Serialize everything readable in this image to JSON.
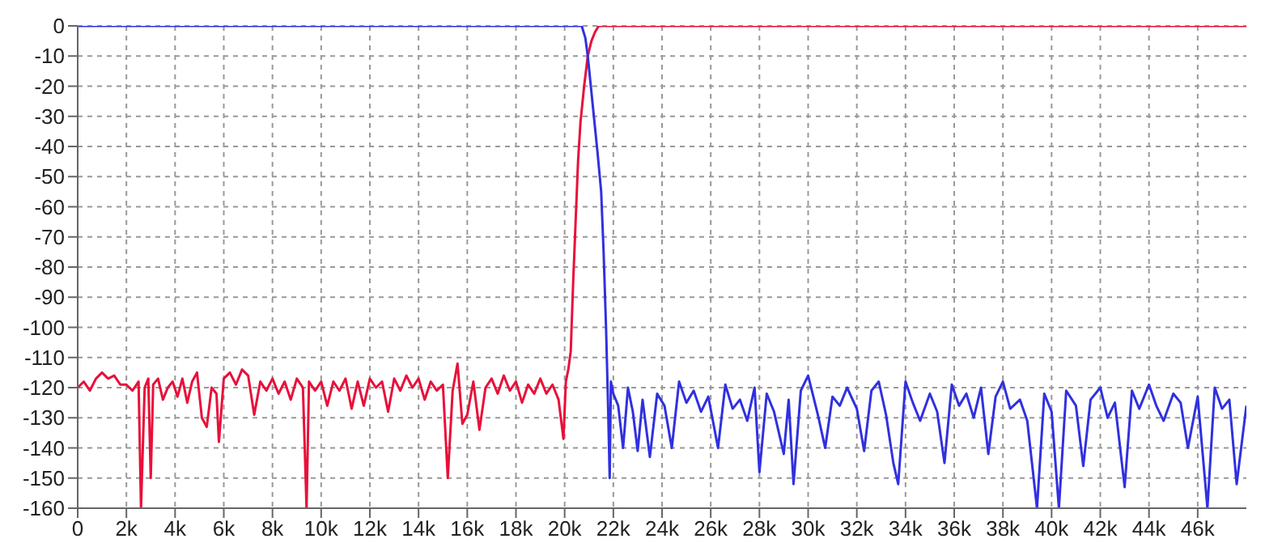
{
  "chart_data": {
    "type": "line",
    "xlim": [
      0,
      48000
    ],
    "ylim": [
      -160,
      0
    ],
    "xticks": [
      0,
      {
        "value": 2000,
        "label": "2k"
      },
      {
        "value": 4000,
        "label": "4k"
      },
      {
        "value": 6000,
        "label": "6k"
      },
      {
        "value": 8000,
        "label": "8k"
      },
      {
        "value": 10000,
        "label": "10k"
      },
      {
        "value": 12000,
        "label": "12k"
      },
      {
        "value": 14000,
        "label": "14k"
      },
      {
        "value": 16000,
        "label": "16k"
      },
      {
        "value": 18000,
        "label": "18k"
      },
      {
        "value": 20000,
        "label": "20k"
      },
      {
        "value": 22000,
        "label": "22k"
      },
      {
        "value": 24000,
        "label": "24k"
      },
      {
        "value": 26000,
        "label": "26k"
      },
      {
        "value": 28000,
        "label": "28k"
      },
      {
        "value": 30000,
        "label": "30k"
      },
      {
        "value": 32000,
        "label": "32k"
      },
      {
        "value": 34000,
        "label": "34k"
      },
      {
        "value": 36000,
        "label": "36k"
      },
      {
        "value": 38000,
        "label": "38k"
      },
      {
        "value": 40000,
        "label": "40k"
      },
      {
        "value": 42000,
        "label": "42k"
      },
      {
        "value": 44000,
        "label": "44k"
      },
      {
        "value": 46000,
        "label": "46k"
      }
    ],
    "yticks": [
      0,
      -10,
      -20,
      -30,
      -40,
      -50,
      -60,
      -70,
      -80,
      -90,
      -100,
      -110,
      -120,
      -130,
      -140,
      -150,
      -160
    ],
    "grid": true,
    "line_style": "solid",
    "series": [
      {
        "color": "#e8103a",
        "x": [
          0,
          250,
          500,
          750,
          1000,
          1250,
          1500,
          1750,
          2000,
          2250,
          2500,
          2600,
          2750,
          2900,
          3000,
          3100,
          3300,
          3500,
          3700,
          3900,
          4100,
          4300,
          4500,
          4700,
          4900,
          5100,
          5300,
          5500,
          5700,
          5800,
          6000,
          6250,
          6500,
          6750,
          7000,
          7250,
          7500,
          7750,
          8000,
          8250,
          8500,
          8750,
          9000,
          9250,
          9400,
          9500,
          9750,
          10000,
          10250,
          10500,
          10750,
          11000,
          11250,
          11500,
          11750,
          12000,
          12250,
          12500,
          12750,
          13000,
          13250,
          13500,
          13750,
          14000,
          14250,
          14500,
          14750,
          15000,
          15200,
          15400,
          15600,
          15800,
          16000,
          16250,
          16500,
          16750,
          17000,
          17250,
          17500,
          17750,
          18000,
          18250,
          18500,
          18750,
          19000,
          19250,
          19500,
          19750,
          19950,
          20050,
          20150,
          20250,
          20350,
          20450,
          20550,
          20650,
          20800,
          20950,
          21100,
          21250,
          21400,
          48000
        ],
        "values": [
          -120,
          -118,
          -121,
          -117,
          -115,
          -117,
          -116,
          -119,
          -119,
          -121,
          -118,
          -160,
          -120,
          -117,
          -150,
          -119,
          -117,
          -124,
          -120,
          -118,
          -123,
          -117,
          -125,
          -118,
          -115,
          -130,
          -133,
          -120,
          -122,
          -138,
          -117,
          -115,
          -119,
          -114,
          -116,
          -129,
          -118,
          -121,
          -117,
          -122,
          -118,
          -124,
          -117,
          -120,
          -160,
          -118,
          -121,
          -118,
          -126,
          -118,
          -121,
          -117,
          -127,
          -118,
          -126,
          -117,
          -120,
          -118,
          -128,
          -117,
          -121,
          -116,
          -120,
          -117,
          -124,
          -118,
          -121,
          -119,
          -150,
          -121,
          -112,
          -132,
          -129,
          -118,
          -134,
          -120,
          -117,
          -122,
          -116,
          -121,
          -118,
          -125,
          -119,
          -122,
          -117,
          -122,
          -119,
          -124,
          -137,
          -118,
          -114,
          -108,
          -85,
          -65,
          -45,
          -32,
          -20,
          -10,
          -5,
          -2,
          0,
          0
        ]
      },
      {
        "color": "#3030e0",
        "x": [
          0,
          20700,
          20850,
          20950,
          21050,
          21200,
          21350,
          21500,
          21600,
          21700,
          21780,
          21850,
          21900,
          22000,
          22200,
          22400,
          22600,
          22800,
          23000,
          23200,
          23500,
          23800,
          24100,
          24400,
          24700,
          25000,
          25300,
          25600,
          25900,
          26300,
          26600,
          26900,
          27200,
          27500,
          27800,
          28000,
          28300,
          28600,
          29000,
          29200,
          29400,
          29700,
          30000,
          30400,
          30700,
          31000,
          31300,
          31600,
          32000,
          32300,
          32600,
          32900,
          33200,
          33500,
          33700,
          34000,
          34300,
          34600,
          35000,
          35300,
          35600,
          35900,
          36200,
          36500,
          36800,
          37100,
          37400,
          37700,
          38000,
          38300,
          38700,
          39000,
          39400,
          39700,
          40000,
          40300,
          40600,
          41000,
          41300,
          41600,
          42000,
          42300,
          42600,
          43000,
          43300,
          43600,
          44000,
          44300,
          44600,
          45000,
          45300,
          45600,
          46000,
          46400,
          46700,
          47000,
          47300,
          47600,
          48000
        ],
        "values": [
          0,
          0,
          -4,
          -10,
          -18,
          -30,
          -42,
          -55,
          -75,
          -100,
          -125,
          -150,
          -118,
          -122,
          -126,
          -140,
          -120,
          -128,
          -141,
          -124,
          -143,
          -122,
          -126,
          -140,
          -118,
          -125,
          -121,
          -128,
          -123,
          -140,
          -119,
          -127,
          -124,
          -131,
          -120,
          -148,
          -122,
          -128,
          -142,
          -124,
          -152,
          -121,
          -116,
          -129,
          -140,
          -123,
          -126,
          -120,
          -127,
          -141,
          -121,
          -118,
          -129,
          -145,
          -152,
          -118,
          -125,
          -131,
          -122,
          -128,
          -145,
          -119,
          -126,
          -122,
          -130,
          -120,
          -142,
          -123,
          -118,
          -127,
          -124,
          -131,
          -160,
          -122,
          -128,
          -160,
          -121,
          -126,
          -146,
          -124,
          -120,
          -130,
          -125,
          -153,
          -121,
          -127,
          -119,
          -126,
          -131,
          -122,
          -125,
          -140,
          -123,
          -160,
          -120,
          -127,
          -124,
          -152,
          -126
        ]
      }
    ]
  }
}
